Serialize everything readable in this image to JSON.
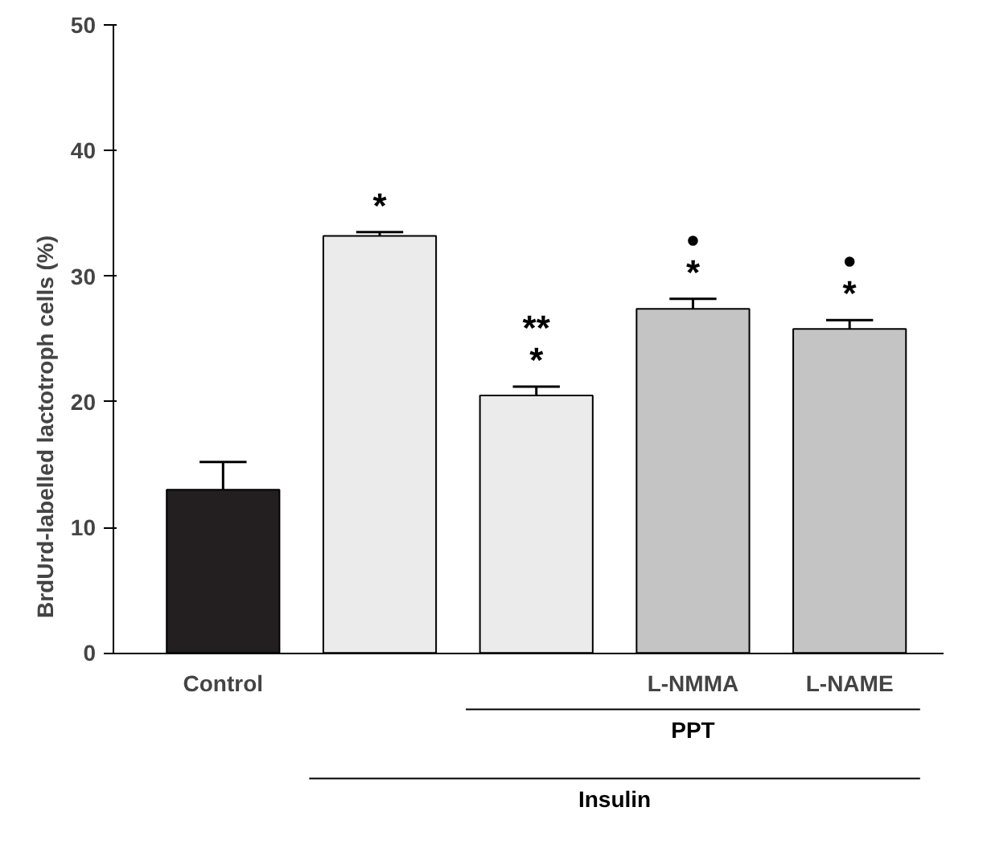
{
  "chart_data": {
    "type": "bar",
    "ylabel": "BrdUrd-labelled lactotroph cells (%)",
    "categories": [
      "Control",
      null,
      null,
      "L-NMMA",
      "L-NAME"
    ],
    "values": [
      13.0,
      33.2,
      20.5,
      27.4,
      25.8
    ],
    "colors": [
      "#231f20",
      "#ebebeb",
      "#ebebeb",
      "#c4c4c4",
      "#c4c4c4"
    ],
    "errors": [
      2.2,
      0.3,
      0.7,
      0.8,
      0.7
    ],
    "value_labels": [
      null,
      "*",
      "**\n*",
      "•\n*",
      "•\n*"
    ],
    "ylim": [
      0,
      50
    ],
    "yticks": [
      0,
      10,
      20,
      30,
      40,
      50
    ],
    "grid": false,
    "annotations": [
      "PPT",
      "Insulin"
    ]
  }
}
